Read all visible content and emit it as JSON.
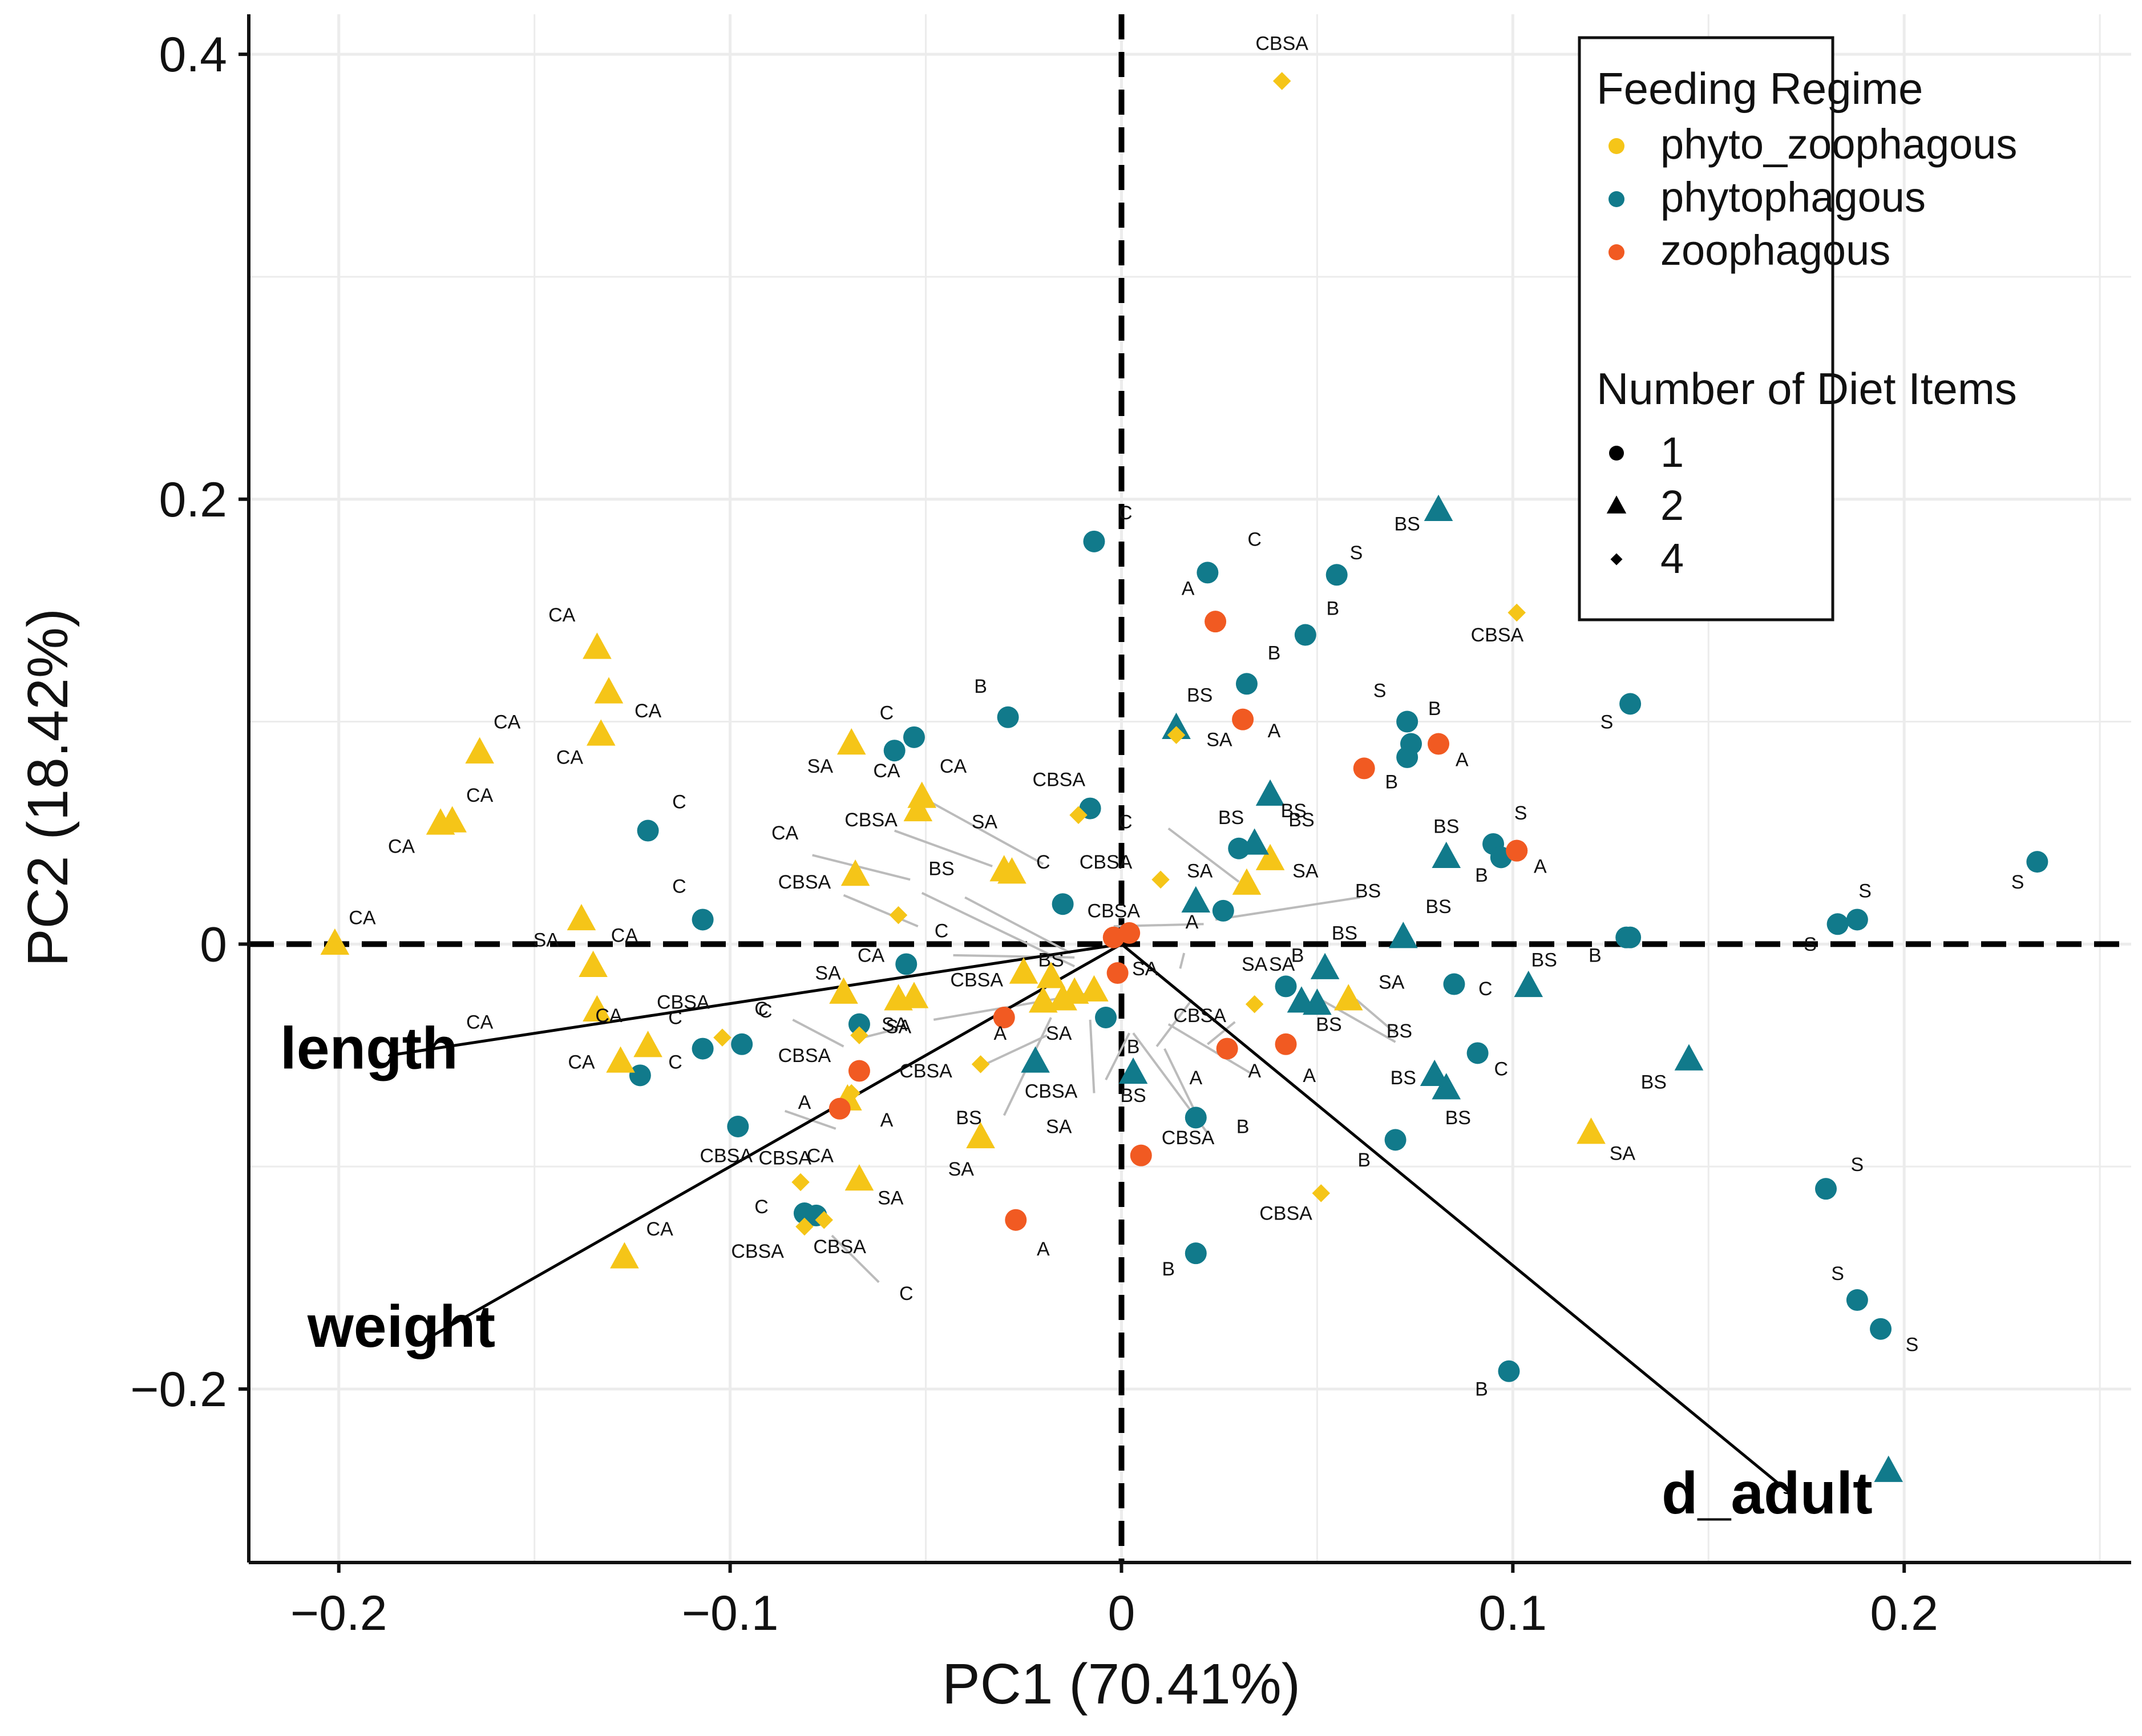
{
  "chart_data": {
    "type": "scatter",
    "subtype": "pca-biplot",
    "title": "",
    "xlabel": "PC1 (70.41%)",
    "ylabel": "PC2 (18.42%)",
    "xlim": [
      -0.223,
      0.258
    ],
    "ylim": [
      -0.278,
      0.418
    ],
    "xticks": [
      -0.2,
      -0.1,
      0,
      0.1,
      0.2
    ],
    "xtick_labels": [
      "−0.2",
      "−0.1",
      "0",
      "0.1",
      "0.2"
    ],
    "yticks": [
      -0.2,
      0,
      0.2,
      0.4
    ],
    "ytick_labels": [
      "−0.2",
      "0",
      "0.2",
      "0.4"
    ],
    "grid": true,
    "zero_lines": "dashed",
    "colors": {
      "phyto_zoophagous": "#F5C518",
      "phytophagous": "#117A8B",
      "zoophagous": "#F15A22",
      "axis": "#111111",
      "grid": "#ececec",
      "arrow": "#000000",
      "leader": "#bbbbbb"
    },
    "legend": {
      "position": "top-right",
      "color_title": "Feeding Regime",
      "color_items": [
        {
          "key": "pz",
          "label": "phyto_zoophagous"
        },
        {
          "key": "p",
          "label": "phytophagous"
        },
        {
          "key": "z",
          "label": "zoophagous"
        }
      ],
      "shape_title": "Number of Diet Items",
      "shape_items": [
        {
          "shape": "circle",
          "label": "1"
        },
        {
          "shape": "triangle",
          "label": "2"
        },
        {
          "shape": "diamond",
          "label": "4"
        }
      ]
    },
    "loadings": [
      {
        "name": "length",
        "x": -0.187,
        "y": -0.05,
        "label_x": -0.215,
        "label_y": -0.056
      },
      {
        "name": "weight",
        "x": -0.178,
        "y": -0.178,
        "label_x": -0.208,
        "label_y": -0.181
      },
      {
        "name": "d_adult",
        "x": 0.171,
        "y": -0.247,
        "label_x": 0.138,
        "label_y": -0.256
      }
    ],
    "series_keys": "x, y, feeding regime (pz/p/z), diet items (1/2/4), label text, label x, label y",
    "points": [
      [
        0.041,
        0.388,
        "pz",
        4,
        "CBSA",
        0.041,
        0.402
      ],
      [
        0.101,
        0.149,
        "pz",
        4,
        "CBSA",
        0.096,
        0.136
      ],
      [
        -0.007,
        0.181,
        "p",
        1,
        "C",
        0.001,
        0.191
      ],
      [
        0.022,
        0.167,
        "p",
        1,
        "C",
        0.034,
        0.179
      ],
      [
        0.055,
        0.166,
        "p",
        1,
        "S",
        0.06,
        0.173
      ],
      [
        0.081,
        0.195,
        "p",
        2,
        "BS",
        0.073,
        0.186
      ],
      [
        0.024,
        0.145,
        "z",
        1,
        "A",
        0.017,
        0.157
      ],
      [
        0.047,
        0.139,
        "p",
        1,
        "B",
        0.054,
        0.148
      ],
      [
        0.032,
        0.117,
        "p",
        1,
        "B",
        0.039,
        0.128
      ],
      [
        0.13,
        0.108,
        "p",
        1,
        "S",
        0.124,
        0.097
      ],
      [
        0.031,
        0.101,
        "z",
        1,
        "A",
        0.039,
        0.093
      ],
      [
        0.073,
        0.1,
        "p",
        1,
        "S",
        0.066,
        0.111
      ],
      [
        0.081,
        0.09,
        "z",
        1,
        "A",
        0.087,
        0.08
      ],
      [
        0.074,
        0.09,
        "p",
        1,
        "B",
        0.08,
        0.103
      ],
      [
        0.073,
        0.084,
        "p",
        1,
        "",
        0,
        0
      ],
      [
        0.062,
        0.079,
        "z",
        1,
        "B",
        0.069,
        0.07
      ],
      [
        0.014,
        0.097,
        "p",
        2,
        "BS",
        0.02,
        0.109
      ],
      [
        0.014,
        0.094,
        "pz",
        4,
        "SA",
        0.025,
        0.089
      ],
      [
        0.038,
        0.067,
        "p",
        2,
        "BS",
        0.044,
        0.057
      ],
      [
        -0.058,
        0.087,
        "p",
        1,
        "CA",
        -0.06,
        0.075
      ],
      [
        -0.029,
        0.102,
        "p",
        1,
        "B",
        -0.036,
        0.113
      ],
      [
        -0.008,
        0.061,
        "p",
        1,
        "CBSA",
        -0.016,
        0.071
      ],
      [
        -0.011,
        0.058,
        "pz",
        4,
        "C",
        0.001,
        0.052
      ],
      [
        -0.069,
        0.09,
        "pz",
        2,
        "C",
        -0.06,
        0.101
      ],
      [
        -0.051,
        0.066,
        "pz",
        2,
        "CA",
        -0.043,
        0.077
      ],
      [
        -0.052,
        0.06,
        "pz",
        2,
        "CBSA",
        -0.064,
        0.053
      ],
      [
        -0.03,
        0.033,
        "pz",
        2,
        "SA",
        -0.035,
        0.052
      ],
      [
        -0.028,
        0.032,
        "pz",
        2,
        "C",
        -0.02,
        0.034
      ],
      [
        -0.068,
        0.031,
        "pz",
        2,
        "CA",
        -0.086,
        0.047
      ],
      [
        -0.057,
        0.013,
        "pz",
        4,
        "CBSA",
        -0.081,
        0.025
      ],
      [
        0.01,
        0.029,
        "pz",
        4,
        "CBSA",
        -0.004,
        0.034
      ],
      [
        0.032,
        0.027,
        "pz",
        2,
        "SA",
        0.02,
        0.03
      ],
      [
        0.038,
        0.038,
        "pz",
        2,
        "SA",
        0.047,
        0.03
      ],
      [
        0.03,
        0.043,
        "p",
        1,
        "BS",
        0.028,
        0.054
      ],
      [
        0.034,
        0.045,
        "p",
        2,
        "BS",
        0.046,
        0.053
      ],
      [
        0.019,
        0.019,
        "p",
        2,
        "CBSA",
        -0.002,
        0.012
      ],
      [
        0.026,
        0.015,
        "p",
        1,
        "BS",
        0.063,
        0.021
      ],
      [
        -0.015,
        0.018,
        "p",
        1,
        "BS",
        -0.046,
        0.031
      ],
      [
        0.095,
        0.045,
        "p",
        1,
        "BS",
        0.083,
        0.05
      ],
      [
        0.097,
        0.039,
        "p",
        1,
        "B",
        0.092,
        0.028
      ],
      [
        0.101,
        0.042,
        "z",
        1,
        "A",
        0.107,
        0.032
      ],
      [
        0.101,
        0.042,
        "z",
        1,
        "S",
        0.102,
        0.056
      ],
      [
        0.083,
        0.039,
        "p",
        2,
        "BS",
        0.081,
        0.014
      ],
      [
        0.072,
        0.003,
        "p",
        2,
        "BS",
        0.057,
        0.002
      ],
      [
        0.129,
        0.003,
        "p",
        1,
        "B",
        0.121,
        -0.008
      ],
      [
        0.234,
        0.037,
        "p",
        1,
        "S",
        0.229,
        0.025
      ],
      [
        0.183,
        0.009,
        "p",
        1,
        "S",
        0.19,
        0.021
      ],
      [
        0.188,
        0.011,
        "p",
        1,
        "",
        0,
        0
      ],
      [
        0.13,
        0.003,
        "p",
        1,
        "S",
        0.176,
        -0.003
      ],
      [
        0.104,
        -0.019,
        "p",
        2,
        "BS",
        0.108,
        -0.01
      ],
      [
        0.085,
        -0.018,
        "p",
        1,
        "C",
        0.093,
        -0.023
      ],
      [
        0.052,
        -0.011,
        "p",
        2,
        "SA",
        0.069,
        -0.02
      ],
      [
        0.042,
        -0.019,
        "p",
        1,
        "B",
        0.045,
        -0.008
      ],
      [
        0.05,
        -0.027,
        "p",
        2,
        "BS",
        0.053,
        -0.039
      ],
      [
        0.046,
        -0.026,
        "p",
        2,
        "BS",
        0.071,
        -0.042
      ],
      [
        0.058,
        -0.025,
        "pz",
        2,
        "SA",
        0.041,
        -0.012
      ],
      [
        0.034,
        -0.027,
        "pz",
        4,
        "SA",
        0.034,
        -0.012
      ],
      [
        0.091,
        -0.049,
        "p",
        1,
        "C",
        0.097,
        -0.059
      ],
      [
        0.08,
        -0.059,
        "p",
        2,
        "BS",
        0.072,
        -0.063
      ],
      [
        0.083,
        -0.065,
        "p",
        2,
        "BS",
        0.086,
        -0.081
      ],
      [
        0.145,
        -0.052,
        "p",
        2,
        "BS",
        0.136,
        -0.065
      ],
      [
        0.12,
        -0.085,
        "pz",
        2,
        "SA",
        0.128,
        -0.097
      ],
      [
        0.07,
        -0.088,
        "p",
        1,
        "B",
        0.062,
        -0.1
      ],
      [
        0.051,
        -0.112,
        "pz",
        4,
        "CBSA",
        0.042,
        -0.124
      ],
      [
        0.019,
        -0.139,
        "p",
        1,
        "B",
        0.012,
        -0.149
      ],
      [
        0.099,
        -0.192,
        "p",
        1,
        "B",
        0.092,
        -0.203
      ],
      [
        0.18,
        -0.11,
        "p",
        1,
        "S",
        0.188,
        -0.102
      ],
      [
        0.188,
        -0.16,
        "p",
        1,
        "S",
        0.183,
        -0.151
      ],
      [
        0.194,
        -0.173,
        "p",
        1,
        "S",
        0.202,
        -0.183
      ],
      [
        0.196,
        -0.237,
        "p",
        2,
        "",
        0,
        0
      ],
      [
        0.042,
        -0.045,
        "z",
        1,
        "A",
        0.048,
        -0.062
      ],
      [
        0.027,
        -0.047,
        "z",
        1,
        "A",
        0.034,
        -0.06
      ],
      [
        0.019,
        -0.078,
        "p",
        1,
        "B",
        0.031,
        -0.085
      ],
      [
        0.005,
        -0.095,
        "z",
        1,
        "CBSA",
        0.017,
        -0.09
      ],
      [
        -0.001,
        -0.013,
        "z",
        1,
        "A",
        0.019,
        -0.063
      ],
      [
        -0.002,
        0.003,
        "z",
        1,
        "SA",
        0.006,
        -0.014
      ],
      [
        0.002,
        0.005,
        "z",
        1,
        "A",
        0.018,
        0.007
      ],
      [
        0.003,
        -0.058,
        "p",
        2,
        "B",
        0.003,
        -0.049
      ],
      [
        -0.004,
        -0.033,
        "p",
        1,
        "CBSA",
        0.02,
        -0.035
      ],
      [
        -0.007,
        -0.021,
        "pz",
        2,
        "BS",
        0.003,
        -0.071
      ],
      [
        -0.012,
        -0.022,
        "pz",
        2,
        "SA",
        -0.016,
        -0.085
      ],
      [
        -0.015,
        -0.025,
        "pz",
        2,
        "SA",
        -0.016,
        -0.043
      ],
      [
        -0.02,
        -0.026,
        "pz",
        2,
        "CBSA",
        -0.018,
        -0.069
      ],
      [
        -0.025,
        -0.013,
        "pz",
        2,
        "CBSA",
        -0.037,
        -0.019
      ],
      [
        -0.018,
        -0.015,
        "pz",
        2,
        "BS",
        -0.018,
        -0.01
      ],
      [
        -0.03,
        -0.033,
        "z",
        1,
        "A",
        -0.031,
        -0.043
      ],
      [
        -0.022,
        -0.053,
        "p",
        2,
        "BS",
        -0.039,
        -0.081
      ],
      [
        -0.036,
        -0.054,
        "pz",
        4,
        "CBSA",
        -0.05,
        -0.06
      ],
      [
        -0.036,
        -0.087,
        "pz",
        2,
        "SA",
        -0.041,
        -0.104
      ],
      [
        -0.027,
        -0.124,
        "z",
        1,
        "A",
        -0.02,
        -0.14
      ],
      [
        -0.053,
        -0.024,
        "pz",
        2,
        "SA",
        -0.057,
        -0.04
      ],
      [
        -0.057,
        -0.025,
        "pz",
        2,
        "CA",
        -0.064,
        -0.008
      ],
      [
        -0.055,
        -0.009,
        "p",
        1,
        "C",
        -0.046,
        0.003
      ],
      [
        -0.071,
        -0.022,
        "pz",
        2,
        "SA",
        -0.075,
        -0.016
      ],
      [
        -0.067,
        -0.036,
        "p",
        1,
        "C",
        -0.092,
        -0.032
      ],
      [
        -0.067,
        -0.041,
        "pz",
        4,
        "SA",
        -0.058,
        -0.039
      ],
      [
        -0.067,
        -0.057,
        "z",
        1,
        "CBSA",
        -0.081,
        -0.053
      ],
      [
        -0.07,
        -0.07,
        "pz",
        2,
        "A",
        -0.06,
        -0.082
      ],
      [
        -0.072,
        -0.074,
        "z",
        1,
        "A",
        -0.081,
        -0.074
      ],
      [
        -0.069,
        -0.067,
        "pz",
        4,
        "CA",
        -0.077,
        -0.098
      ],
      [
        -0.067,
        -0.106,
        "pz",
        2,
        "SA",
        -0.059,
        -0.117
      ],
      [
        -0.082,
        -0.107,
        "pz",
        4,
        "CBSA",
        -0.086,
        -0.099
      ],
      [
        -0.081,
        -0.121,
        "p",
        1,
        "C",
        -0.092,
        -0.121
      ],
      [
        -0.078,
        -0.122,
        "p",
        1,
        "CBSA",
        -0.072,
        -0.139
      ],
      [
        -0.081,
        -0.127,
        "pz",
        4,
        "CBSA",
        -0.093,
        -0.141
      ],
      [
        -0.076,
        -0.124,
        "pz",
        4,
        "C",
        -0.055,
        -0.16
      ],
      [
        -0.097,
        -0.045,
        "p",
        1,
        "C",
        -0.091,
        -0.033
      ],
      [
        -0.107,
        -0.047,
        "p",
        1,
        "C",
        -0.114,
        -0.036
      ],
      [
        -0.102,
        -0.042,
        "pz",
        4,
        "CBSA",
        -0.112,
        -0.029
      ],
      [
        -0.098,
        -0.082,
        "p",
        1,
        "CBSA",
        -0.101,
        -0.098
      ],
      [
        -0.107,
        0.011,
        "p",
        1,
        "C",
        -0.113,
        0.023
      ],
      [
        -0.121,
        0.051,
        "p",
        1,
        "C",
        -0.113,
        0.061
      ],
      [
        -0.123,
        -0.059,
        "p",
        1,
        "C",
        -0.114,
        -0.056
      ],
      [
        -0.121,
        -0.046,
        "pz",
        2,
        "CA",
        -0.131,
        -0.035
      ],
      [
        -0.135,
        -0.01,
        "pz",
        2,
        "SA",
        -0.147,
        -0.001
      ],
      [
        -0.138,
        0.011,
        "pz",
        2,
        "CA",
        -0.127,
        0.001
      ],
      [
        -0.131,
        0.113,
        "pz",
        2,
        "CA",
        -0.121,
        0.102
      ],
      [
        -0.134,
        0.133,
        "pz",
        2,
        "CA",
        -0.143,
        0.145
      ],
      [
        -0.133,
        0.094,
        "pz",
        2,
        "CA",
        -0.141,
        0.081
      ],
      [
        -0.164,
        0.086,
        "pz",
        2,
        "CA",
        -0.157,
        0.097
      ],
      [
        -0.171,
        0.055,
        "pz",
        2,
        "CA",
        -0.164,
        0.064
      ],
      [
        -0.174,
        0.054,
        "pz",
        2,
        "CA",
        -0.184,
        0.041
      ],
      [
        -0.201,
        0.0,
        "pz",
        2,
        "CA",
        -0.194,
        0.009
      ],
      [
        -0.128,
        -0.053,
        "pz",
        2,
        "CA",
        -0.138,
        -0.056
      ],
      [
        -0.127,
        -0.141,
        "pz",
        2,
        "CA",
        -0.118,
        -0.131
      ],
      [
        -0.134,
        -0.03,
        "pz",
        2,
        "CA",
        -0.164,
        -0.038
      ],
      [
        -0.053,
        0.093,
        "p",
        1,
        "SA",
        -0.077,
        0.077
      ]
    ],
    "leaders": [
      [
        -0.051,
        0.066,
        -0.02,
        0.036
      ],
      [
        -0.058,
        0.051,
        -0.033,
        0.035
      ],
      [
        -0.079,
        0.04,
        -0.054,
        0.029
      ],
      [
        -0.071,
        0.022,
        -0.052,
        0.008
      ],
      [
        -0.051,
        0.023,
        -0.012,
        -0.01
      ],
      [
        -0.048,
        -0.034,
        -0.008,
        -0.022
      ],
      [
        -0.04,
        0.021,
        -0.013,
        -0.004
      ],
      [
        -0.043,
        -0.005,
        -0.012,
        -0.006
      ],
      [
        0.012,
        0.052,
        0.03,
        0.028
      ],
      [
        0.024,
        0.011,
        0.061,
        0.021
      ],
      [
        0.021,
        0.009,
        -0.002,
        0.008
      ],
      [
        0.016,
        -0.004,
        0.015,
        -0.011
      ],
      [
        0.018,
        -0.025,
        0.009,
        -0.046
      ],
      [
        0.011,
        -0.047,
        0.019,
        -0.076
      ],
      [
        0.012,
        -0.036,
        0.033,
        -0.058
      ],
      [
        0.002,
        -0.04,
        -0.004,
        -0.061
      ],
      [
        -0.018,
        -0.033,
        -0.03,
        -0.077
      ],
      [
        -0.019,
        -0.041,
        -0.036,
        -0.055
      ],
      [
        -0.008,
        -0.034,
        -0.007,
        -0.067
      ],
      [
        0.003,
        -0.04,
        0.022,
        -0.085
      ],
      [
        0.06,
        -0.025,
        0.07,
        -0.04
      ],
      [
        0.051,
        -0.025,
        0.07,
        -0.044
      ],
      [
        0.029,
        -0.035,
        0.022,
        -0.045
      ],
      [
        -0.086,
        -0.075,
        -0.073,
        -0.083
      ],
      [
        -0.074,
        -0.131,
        -0.062,
        -0.152
      ],
      [
        -0.071,
        -0.046,
        -0.084,
        -0.034
      ],
      [
        -0.066,
        -0.042,
        -0.057,
        -0.038
      ]
    ]
  }
}
